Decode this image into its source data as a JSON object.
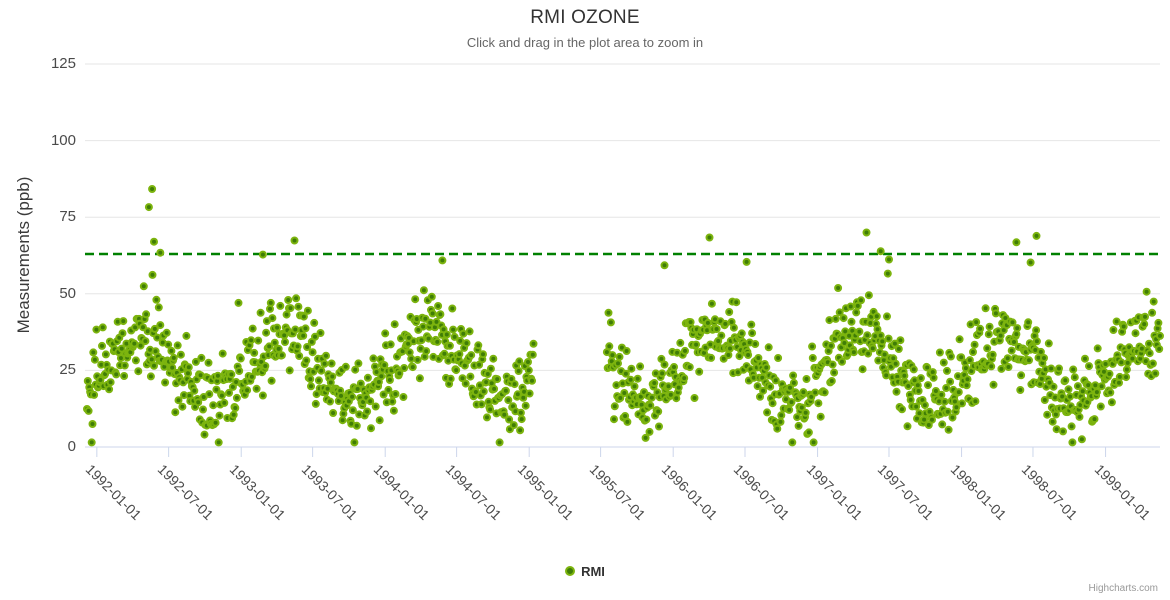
{
  "chart_data": {
    "type": "scatter",
    "title": "RMI OZONE",
    "subtitle": "Click and drag in the plot area to zoom in",
    "credits": "Highcharts.com",
    "xlabel": "",
    "ylabel": "Measurements (ppb)",
    "ylim": [
      0,
      125
    ],
    "yticks": [
      0,
      25,
      50,
      75,
      100,
      125
    ],
    "x_type": "datetime",
    "x_range": [
      "1991-12-02",
      "1999-05-19"
    ],
    "xticks": [
      "1992-01-01",
      "1992-07-01",
      "1993-01-01",
      "1993-07-01",
      "1994-01-01",
      "1994-07-01",
      "1995-01-01",
      "1995-07-01",
      "1996-01-01",
      "1996-07-01",
      "1997-01-01",
      "1997-07-01",
      "1998-01-01",
      "1998-07-01",
      "1999-01-01"
    ],
    "grid": "horizontal",
    "legend_position": "bottom-center",
    "threshold_line": {
      "value": 63,
      "style": "dashed",
      "color": "#008000"
    },
    "series": [
      {
        "name": "RMI",
        "marker": {
          "shape": "circle",
          "fill": "#3f7d06",
          "stroke": "#7cb40e"
        },
        "data_model": {
          "description": "Daily-ish ozone measurements, seasonal cycle peaking in spring (~37 ppb mean) and bottoming in autumn (~15 ppb mean), gap Jan-Jul 1995",
          "start": "1991-12-07",
          "end": "1999-05-19",
          "interval_days": 2,
          "gaps": [
            [
              "1995-01-14",
              "1995-07-15"
            ]
          ],
          "base": 26,
          "amplitude": 11,
          "peak_doy": 110,
          "sigma": 6.5,
          "spike_prob": 0.008,
          "min_value": 1.5,
          "max_value": 70,
          "seed": 42
        },
        "notable_points": [
          [
            "1992-05-20",
            84.2
          ],
          [
            "1992-05-12",
            78.3
          ],
          [
            "1992-05-25",
            67.0
          ],
          [
            "1992-06-10",
            63.4
          ],
          [
            "1993-02-25",
            62.8
          ],
          [
            "1994-05-26",
            60.9
          ],
          [
            "1995-12-10",
            59.3
          ],
          [
            "1996-07-05",
            60.4
          ],
          [
            "1997-06-10",
            63.9
          ],
          [
            "1997-07-01",
            61.2
          ],
          [
            "1998-05-20",
            66.8
          ],
          [
            "1998-06-25",
            60.2
          ],
          [
            "1998-07-10",
            68.9
          ]
        ]
      }
    ]
  },
  "colors": {
    "background": "#ffffff",
    "gridline": "#e6e6e6",
    "axis": "#ccd6eb",
    "title": "#333333",
    "subtitle": "#666666",
    "tick_label": "#4a4a4a",
    "marker_fill": "#3f7d06",
    "marker_stroke": "#7cb40e",
    "threshold": "#008000",
    "legend_label": "#333333",
    "credits": "#999999"
  }
}
